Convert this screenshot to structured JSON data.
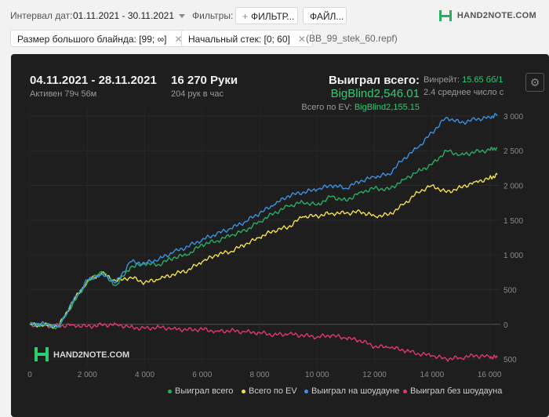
{
  "filters": {
    "date_label": "Интервал дат:",
    "date_value": "01.11.2021 - 30.11.2021",
    "filters_label": "Фильтры:",
    "filter_button": "ФИЛЬТР...",
    "file_button": "ФАЙЛ...",
    "chips": [
      "Размер большого блайнда: [99; ∞]",
      "Начальный стек: [0; 60]"
    ],
    "file_name": "(BB_99_stek_60.repf)"
  },
  "logo": {
    "text": "HAND2NOTE.COM"
  },
  "stats": {
    "range": "04.11.2021 - 28.11.2021",
    "active": "Активен 79ч 56м",
    "hands": "16 270 Руки",
    "hands_rate": "204 рук в час",
    "won_total_label": "Выиграл всего:",
    "won_total_value": "BigBlind2,546.01",
    "ev_label": "Всего по EV:",
    "ev_value": "BigBlind2,155.15",
    "winrate_label": "Винрейт:",
    "winrate_value": "15.65 бб/1",
    "avg_line": "2.4 среднее число с"
  },
  "watermark": "HAND2NOTE.COM",
  "chart_data": {
    "type": "line",
    "x_ticks": [
      "0",
      "2 000",
      "4 000",
      "6 000",
      "8 000",
      "10 000",
      "12 000",
      "14 000",
      "16 000"
    ],
    "y_ticks": [
      "3 000",
      "2 500",
      "2 000",
      "1 500",
      "1 000",
      "500",
      "0",
      "-500"
    ],
    "xlim": [
      0,
      16270
    ],
    "ylim": [
      -600,
      3100
    ],
    "series": [
      {
        "name": "Выиграл всего",
        "color": "#27ae60",
        "x": [
          0,
          500,
          1000,
          1500,
          2000,
          2500,
          3000,
          3500,
          4000,
          4500,
          5000,
          5500,
          6000,
          6500,
          7000,
          7500,
          8000,
          8500,
          9000,
          9500,
          10000,
          10500,
          11000,
          11500,
          12000,
          12500,
          13000,
          13500,
          14000,
          14500,
          15000,
          15500,
          16000,
          16270
        ],
        "y": [
          0,
          -10,
          -40,
          300,
          600,
          760,
          560,
          820,
          870,
          860,
          960,
          1000,
          1150,
          1200,
          1280,
          1350,
          1480,
          1600,
          1700,
          1760,
          1720,
          1840,
          1780,
          1900,
          1960,
          1940,
          2080,
          2200,
          2300,
          2500,
          2440,
          2480,
          2510,
          2546
        ]
      },
      {
        "name": "Всего по EV",
        "color": "#f1e14b",
        "x": [
          0,
          500,
          1000,
          1500,
          2000,
          2500,
          3000,
          3500,
          4000,
          4500,
          5000,
          5500,
          6000,
          6500,
          7000,
          7500,
          8000,
          8500,
          9000,
          9500,
          10000,
          10500,
          11000,
          11500,
          12000,
          12500,
          13000,
          13500,
          14000,
          14500,
          15000,
          15500,
          16000,
          16270
        ],
        "y": [
          0,
          -10,
          -30,
          330,
          620,
          740,
          620,
          680,
          600,
          650,
          720,
          780,
          900,
          1000,
          1050,
          1150,
          1250,
          1350,
          1400,
          1550,
          1560,
          1600,
          1600,
          1620,
          1560,
          1580,
          1720,
          1900,
          2000,
          1900,
          1970,
          2050,
          2100,
          2155
        ]
      },
      {
        "name": "Выиграл на шоудауне",
        "color": "#3d8fe0",
        "x": [
          0,
          500,
          1000,
          1500,
          2000,
          2500,
          3000,
          3500,
          4000,
          4500,
          5000,
          5500,
          6000,
          6500,
          7000,
          7500,
          8000,
          8500,
          9000,
          9500,
          10000,
          10500,
          11000,
          11500,
          12000,
          12500,
          13000,
          13500,
          14000,
          14500,
          15000,
          15500,
          16000,
          16270
        ],
        "y": [
          0,
          10,
          -30,
          330,
          640,
          720,
          600,
          900,
          880,
          940,
          1040,
          1120,
          1220,
          1300,
          1380,
          1480,
          1600,
          1720,
          1850,
          1900,
          1940,
          2000,
          1960,
          2060,
          2120,
          2160,
          2380,
          2540,
          2760,
          2980,
          2900,
          2950,
          2980,
          3020
        ]
      },
      {
        "name": "Выиграл без шоудауна",
        "color": "#e0386b",
        "x": [
          0,
          500,
          1000,
          1500,
          2000,
          2500,
          3000,
          3500,
          4000,
          4500,
          5000,
          5500,
          6000,
          6500,
          7000,
          7500,
          8000,
          8500,
          9000,
          9500,
          10000,
          10500,
          11000,
          11500,
          12000,
          12500,
          13000,
          13500,
          14000,
          14500,
          15000,
          15500,
          16000,
          16270
        ],
        "y": [
          0,
          -20,
          -20,
          -10,
          -30,
          -10,
          0,
          -40,
          -60,
          -40,
          -60,
          -80,
          -70,
          -100,
          -90,
          -110,
          -120,
          -150,
          -140,
          -160,
          -180,
          -160,
          -200,
          -230,
          -320,
          -330,
          -370,
          -420,
          -450,
          -500,
          -480,
          -450,
          -470,
          -475
        ]
      }
    ]
  }
}
